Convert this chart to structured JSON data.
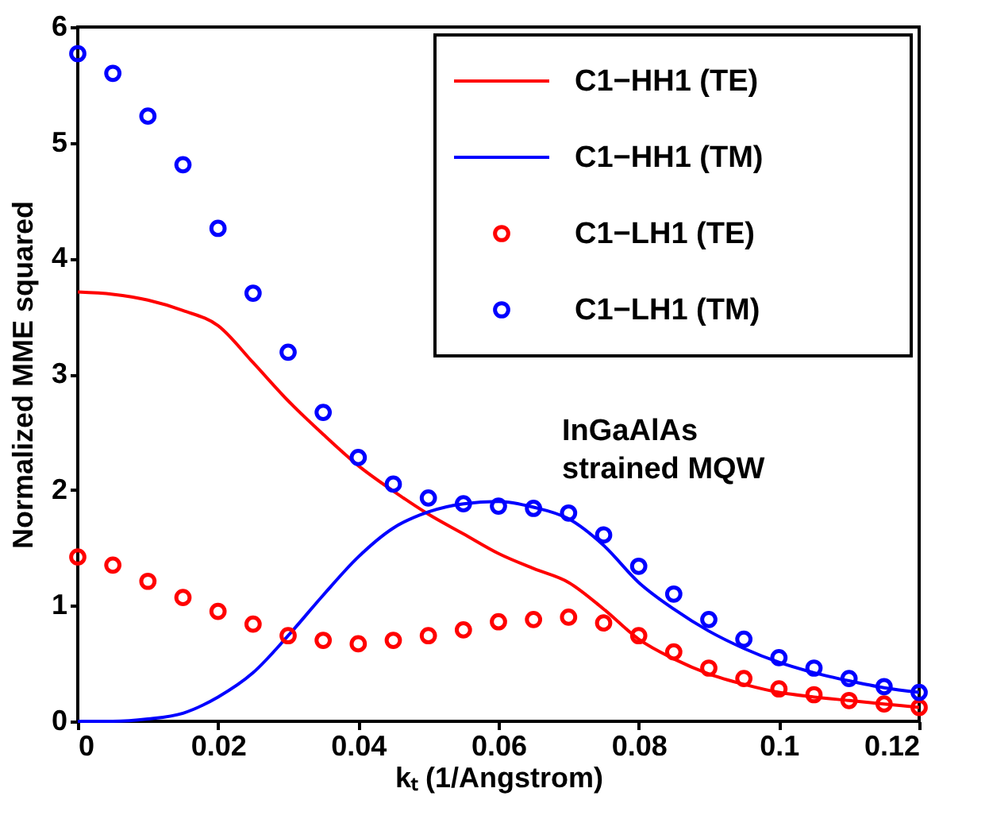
{
  "chart_data": {
    "type": "line",
    "xlabel": "kₜ (1/Angstrom)",
    "ylabel": "Normalized MME squared",
    "annotations": [
      "InGaAlAs\nstrained MQW"
    ],
    "x": [
      0,
      0.005,
      0.01,
      0.015,
      0.02,
      0.025,
      0.03,
      0.035,
      0.04,
      0.045,
      0.05,
      0.055,
      0.06,
      0.065,
      0.07,
      0.075,
      0.08,
      0.085,
      0.09,
      0.095,
      0.1,
      0.105,
      0.11,
      0.115,
      0.12
    ],
    "xlim": [
      0,
      0.12
    ],
    "xticks": [
      0,
      0.02,
      0.04,
      0.06,
      0.08,
      0.1,
      0.12
    ],
    "ylim": [
      0,
      6
    ],
    "yticks": [
      0,
      1,
      2,
      3,
      4,
      5,
      6
    ],
    "grid": false,
    "legend": "top right",
    "series": [
      {
        "name": "C1−HH1 (TE)",
        "type": "line",
        "color": "#ff0000",
        "line_style": "solid",
        "values": [
          3.71,
          3.69,
          3.64,
          3.55,
          3.42,
          3.1,
          2.77,
          2.48,
          2.21,
          1.99,
          1.79,
          1.62,
          1.45,
          1.32,
          1.2,
          0.97,
          0.71,
          0.54,
          0.41,
          0.32,
          0.25,
          0.21,
          0.18,
          0.15,
          0.12
        ]
      },
      {
        "name": "C1−HH1 (TM)",
        "type": "line",
        "color": "#0000ff",
        "line_style": "solid",
        "values": [
          0,
          0,
          0.02,
          0.07,
          0.21,
          0.42,
          0.74,
          1.09,
          1.42,
          1.67,
          1.81,
          1.88,
          1.9,
          1.85,
          1.75,
          1.52,
          1.2,
          0.97,
          0.78,
          0.63,
          0.51,
          0.42,
          0.35,
          0.29,
          0.25
        ]
      },
      {
        "name": "C1−LH1 (TE)",
        "type": "scatter",
        "marker": "circle",
        "color": "#ff0000",
        "values": [
          1.42,
          1.35,
          1.21,
          1.07,
          0.95,
          0.84,
          0.74,
          0.7,
          0.67,
          0.7,
          0.74,
          0.79,
          0.86,
          0.88,
          0.9,
          0.85,
          0.74,
          0.6,
          0.46,
          0.37,
          0.28,
          0.23,
          0.18,
          0.15,
          0.12
        ]
      },
      {
        "name": "C1−LH1 (TM)",
        "type": "scatter",
        "marker": "circle",
        "color": "#0000ff",
        "values": [
          5.77,
          5.6,
          5.23,
          4.81,
          4.26,
          3.7,
          3.19,
          2.67,
          2.28,
          2.05,
          1.93,
          1.88,
          1.86,
          1.84,
          1.8,
          1.61,
          1.34,
          1.1,
          0.88,
          0.71,
          0.55,
          0.46,
          0.37,
          0.3,
          0.25
        ]
      }
    ]
  }
}
